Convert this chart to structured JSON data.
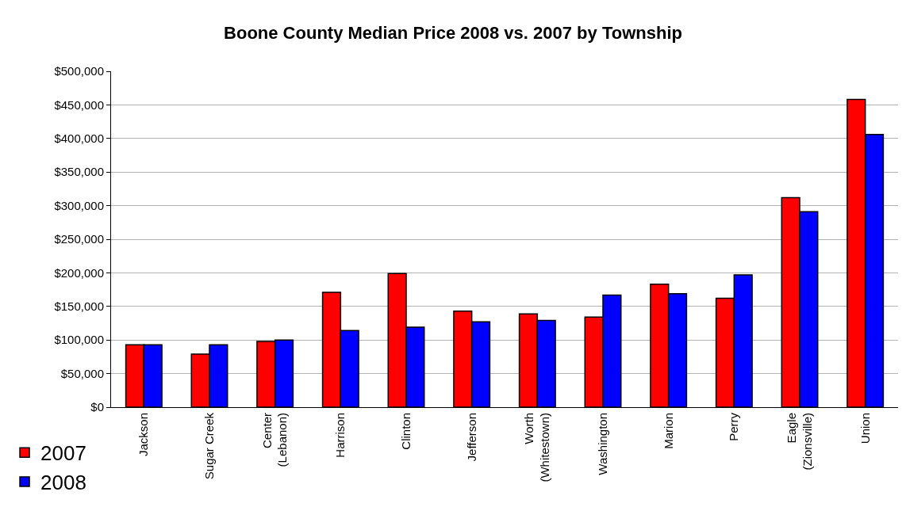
{
  "chart_data": {
    "type": "bar",
    "title": "Boone County Median Price 2008 vs. 2007 by Township",
    "categories": [
      "Jackson",
      "Sugar Creek",
      "Center\n(Lebanon)",
      "Harrison",
      "Clinton",
      "Jefferson",
      "Worth\n(Whitestown)",
      "Washington",
      "Marion",
      "Perry",
      "Eagle\n(Zionsville)",
      "Union"
    ],
    "series": [
      {
        "name": "2007",
        "color": "#ff0000",
        "values": [
          93000,
          79000,
          98000,
          171000,
          199000,
          143000,
          139000,
          134000,
          183000,
          162000,
          312000,
          458000
        ]
      },
      {
        "name": "2008",
        "color": "#0000ff",
        "values": [
          93000,
          93000,
          100000,
          114000,
          119000,
          127000,
          129000,
          167000,
          169000,
          197000,
          291000,
          406000
        ]
      }
    ],
    "ylim": [
      0,
      500000
    ],
    "yticks": [
      {
        "value": 0,
        "label": "$0"
      },
      {
        "value": 50000,
        "label": "$50,000"
      },
      {
        "value": 100000,
        "label": "$100,000"
      },
      {
        "value": 150000,
        "label": "$150,000"
      },
      {
        "value": 200000,
        "label": "$200,000"
      },
      {
        "value": 250000,
        "label": "$250,000"
      },
      {
        "value": 300000,
        "label": "$300,000"
      },
      {
        "value": 350000,
        "label": "$350,000"
      },
      {
        "value": 400000,
        "label": "$400,000"
      },
      {
        "value": 450000,
        "label": "$450,000"
      },
      {
        "value": 500000,
        "label": "$500,000"
      }
    ],
    "grid": "y",
    "legend": "bottom left"
  }
}
